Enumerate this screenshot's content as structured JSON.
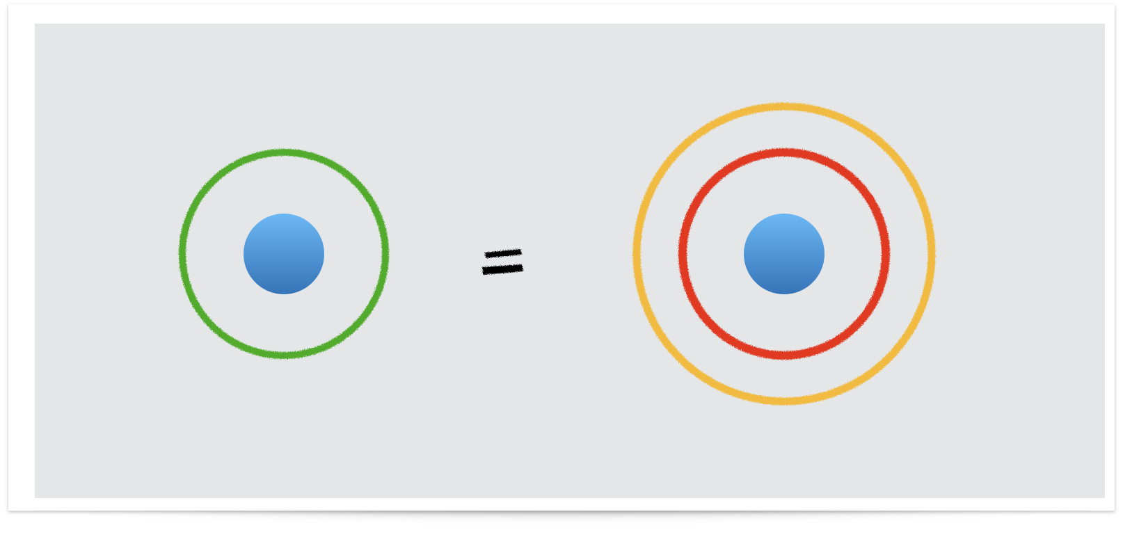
{
  "diagram": {
    "left_atom": {
      "nucleus": {
        "icon": "nucleus-sphere-icon",
        "color_top": "#6cb8f4",
        "color_bottom": "#3674b8"
      },
      "orbits": [
        {
          "color": "#52ab2f"
        }
      ]
    },
    "operator": {
      "symbol": "=",
      "color": "#000000"
    },
    "right_atom": {
      "nucleus": {
        "icon": "nucleus-sphere-icon",
        "color_top": "#6cb8f4",
        "color_bottom": "#3674b8"
      },
      "orbits": [
        {
          "color": "#e03a22"
        },
        {
          "color": "#f0bb40"
        }
      ]
    }
  },
  "colors": {
    "background": "#e4e6e8",
    "frame": "#ffffff"
  }
}
